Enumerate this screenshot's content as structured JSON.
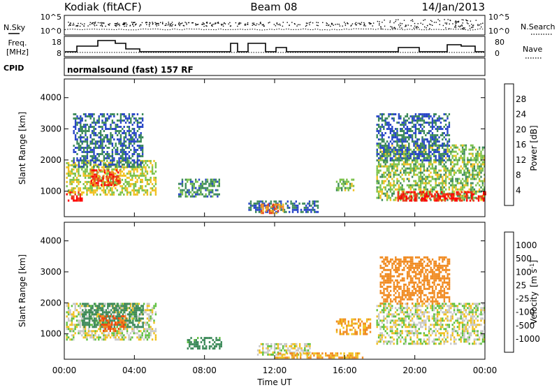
{
  "header": {
    "station": "Kodiak (fitACF)",
    "beam": "Beam 08",
    "date": "14/Jan/2013"
  },
  "sky_panel": {
    "left_label": "N.Sky",
    "right_label": "N.Search",
    "left_ticks": [
      "10^5",
      "10^0"
    ],
    "right_ticks": [
      "10^5",
      "10^0"
    ]
  },
  "freq_panel": {
    "left_label_line1": "Freq.",
    "left_label_line2": "[MHz]",
    "left_ticks": [
      "18",
      "8"
    ],
    "right_ticks": [
      "80",
      "0"
    ],
    "right_label": "Nave"
  },
  "cpid_panel": {
    "label": "CPID",
    "text": "normalsound (fast) 157 RF"
  },
  "chart_data": [
    {
      "type": "heatmap",
      "title": "Power",
      "ylabel": "Slant Range [km]",
      "colorbar_label": "Power [dB]",
      "colorbar_ticks": [
        "4",
        "8",
        "12",
        "16",
        "20",
        "24",
        "28"
      ],
      "colorbar_colors": [
        "#0000ff",
        "#2a47c8",
        "#3d8a5a",
        "#7ac14a",
        "#f0c020",
        "#f08a20",
        "#e83a1a",
        "#ff0000"
      ],
      "x_ticks": [
        "00:00",
        "04:00",
        "08:00",
        "12:00",
        "16:00",
        "20:00",
        "00:00"
      ],
      "xlim_hours": [
        0,
        24
      ],
      "y_ticks": [
        "1000",
        "2000",
        "3000",
        "4000"
      ],
      "ylim_km": [
        180,
        4600
      ],
      "grid": false,
      "echo_regions": [
        {
          "t0": 0.1,
          "t1": 1.0,
          "r0": 700,
          "r1": 1000,
          "value": 28
        },
        {
          "t0": 0.1,
          "t1": 5.2,
          "r0": 900,
          "r1": 2000,
          "value": 16
        },
        {
          "t0": 1.5,
          "t1": 3.2,
          "r0": 1200,
          "r1": 1700,
          "value": 26
        },
        {
          "t0": 0.5,
          "t1": 4.5,
          "r0": 1800,
          "r1": 3500,
          "value": 8
        },
        {
          "t0": 6.5,
          "t1": 8.8,
          "r0": 800,
          "r1": 1400,
          "value": 10
        },
        {
          "t0": 10.5,
          "t1": 14.5,
          "r0": 300,
          "r1": 700,
          "value": 8
        },
        {
          "t0": 11.2,
          "t1": 12.5,
          "r0": 300,
          "r1": 600,
          "value": 22
        },
        {
          "t0": 15.5,
          "t1": 16.5,
          "r0": 1000,
          "r1": 1400,
          "value": 14
        },
        {
          "t0": 17.8,
          "t1": 24.0,
          "r0": 700,
          "r1": 2500,
          "value": 14
        },
        {
          "t0": 19.0,
          "t1": 24.0,
          "r0": 700,
          "r1": 1000,
          "value": 28
        },
        {
          "t0": 17.8,
          "t1": 22.0,
          "r0": 2000,
          "r1": 3500,
          "value": 8
        }
      ]
    },
    {
      "type": "heatmap",
      "title": "Velocity",
      "ylabel": "Slant Range [km]",
      "xlabel": "Time UT",
      "colorbar_label": "Velocity [m s-1]",
      "colorbar_label_main": "Velocity",
      "colorbar_label_unit": "[m s",
      "colorbar_label_sup": "-1",
      "colorbar_label_close": "]",
      "colorbar_ticks": [
        "-1000",
        "-500",
        "-100",
        "-25",
        "25",
        "100",
        "500",
        "1000"
      ],
      "colorbar_colors": [
        "#ff0000",
        "#f04a10",
        "#f08a20",
        "#f0c020",
        "#c8c8c8",
        "#60c040",
        "#3d8a5a",
        "#2a47c8",
        "#0000ff"
      ],
      "x_ticks": [
        "00:00",
        "04:00",
        "08:00",
        "12:00",
        "16:00",
        "20:00",
        "00:00"
      ],
      "xlim_hours": [
        0,
        24
      ],
      "y_ticks": [
        "1000",
        "2000",
        "3000",
        "4000"
      ],
      "ylim_km": [
        180,
        4600
      ],
      "grid": false,
      "echo_regions": [
        {
          "t0": 0.1,
          "t1": 5.2,
          "r0": 800,
          "r1": 2000,
          "value": 0
        },
        {
          "t0": 1.0,
          "t1": 4.5,
          "r0": 1200,
          "r1": 2000,
          "value": 300
        },
        {
          "t0": 2.0,
          "t1": 3.5,
          "r0": 1100,
          "r1": 1600,
          "value": -500
        },
        {
          "t0": 7.0,
          "t1": 9.0,
          "r0": 500,
          "r1": 900,
          "value": 150
        },
        {
          "t0": 11.0,
          "t1": 14.0,
          "r0": 300,
          "r1": 700,
          "value": 0
        },
        {
          "t0": 12.0,
          "t1": 17.0,
          "r0": 250,
          "r1": 400,
          "value": -100
        },
        {
          "t0": 15.5,
          "t1": 17.5,
          "r0": 1000,
          "r1": 1500,
          "value": -100
        },
        {
          "t0": 17.8,
          "t1": 24.0,
          "r0": 700,
          "r1": 2000,
          "value": 0
        },
        {
          "t0": 18.0,
          "t1": 22.0,
          "r0": 2000,
          "r1": 3500,
          "value": -300
        }
      ]
    }
  ]
}
